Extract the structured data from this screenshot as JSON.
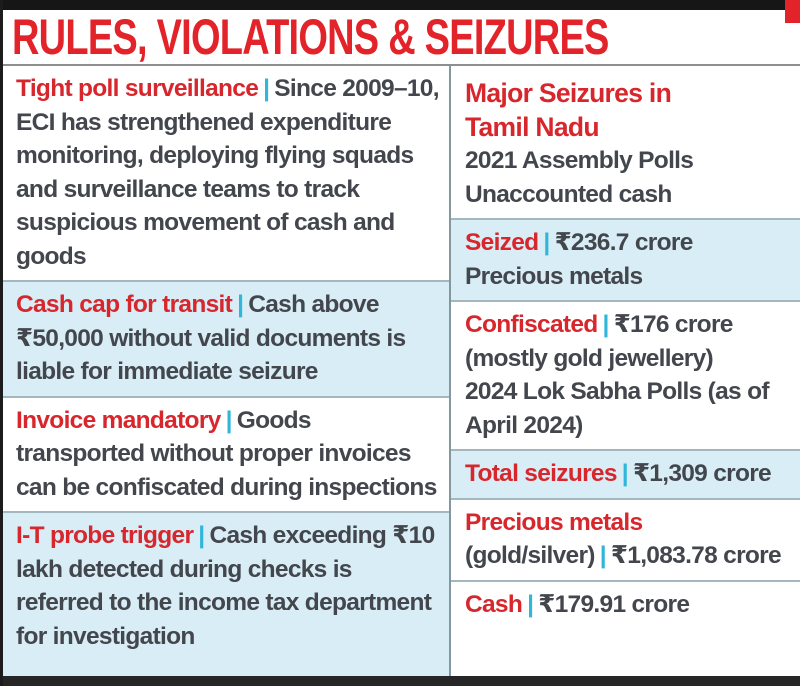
{
  "title": "RULES, VIOLATIONS & SEIZURES",
  "separator": "|",
  "colors": {
    "accent_red": "#e2232a",
    "heading_red": "#d8262d",
    "highlight_blue": "#d8edf5",
    "body_text": "#43464d",
    "pipe_cyan": "#2fb6d9",
    "divider_gray": "#83979e",
    "bar_black": "#161616"
  },
  "left_sections": [
    {
      "heading": "Tight poll surveillance",
      "body": "Since 2009–10, ECI has strengthened expenditure monitoring, deploying flying squads and surveillance teams to track suspicious movement of cash and goods"
    },
    {
      "heading": "Cash cap for transit",
      "body": "Cash above ₹50,000 without valid documents is liable for immediate seizure"
    },
    {
      "heading": "Invoice mandatory",
      "body": "Goods transported without proper invoices can be confiscated during inspections"
    },
    {
      "heading": "I-T probe trigger",
      "body": "Cash exceeding ₹10 lakh detected during checks is referred to the income tax department for investigation"
    }
  ],
  "right_header": {
    "title": "Major Seizures in Tamil Nadu",
    "line1": "2021 Assembly Polls",
    "line2": "Unaccounted cash"
  },
  "right_sections": [
    {
      "heading": "Seized",
      "value": "₹236.7 crore",
      "note": "Precious metals"
    },
    {
      "heading": "Confiscated",
      "value": "₹176 crore (mostly gold jewellery)",
      "note": "2024 Lok Sabha Polls (as of April 2024)"
    },
    {
      "heading": "Total seizures",
      "value": "₹1,309 crore"
    },
    {
      "heading": "Precious metals",
      "subheading": "(gold/silver)",
      "value": "₹1,083.78 crore"
    },
    {
      "heading": "Cash",
      "value": "₹179.91 crore"
    }
  ]
}
